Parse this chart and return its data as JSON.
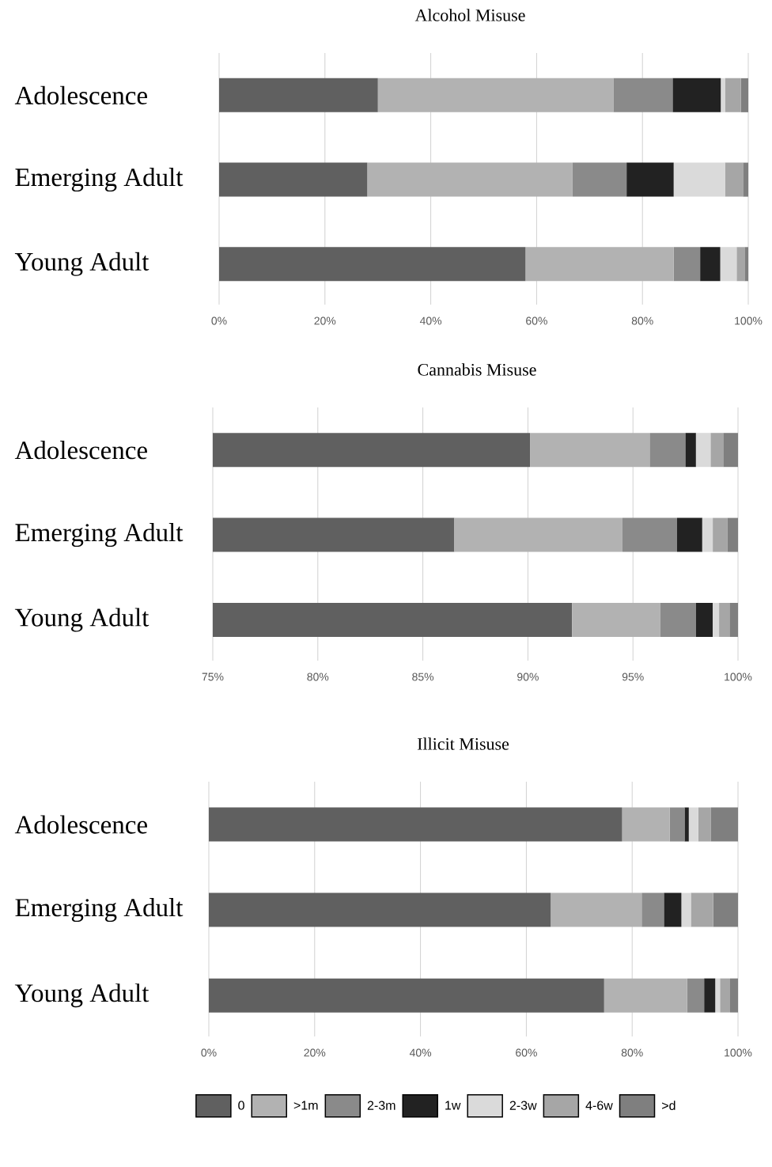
{
  "chart_data": [
    {
      "type": "bar",
      "orientation": "horizontal",
      "stacked": true,
      "title": "Alcohol Misuse",
      "categories": [
        "Adolescence",
        "Emerging Adult",
        "Young Adult"
      ],
      "series": [
        {
          "color": "#606060",
          "values": [
            30,
            28,
            57.9
          ]
        },
        {
          "color": "#b2b2b2",
          "values": [
            44.5,
            38.8,
            28.0
          ]
        },
        {
          "color": "#8a8a8a",
          "values": [
            11.2,
            10.2,
            5.0
          ]
        },
        {
          "color": "#222222",
          "values": [
            9.1,
            8.9,
            3.8
          ]
        },
        {
          "color": "#dadada",
          "values": [
            0.8,
            9.7,
            3.1
          ]
        },
        {
          "color": "#a6a6a6",
          "values": [
            3.0,
            3.4,
            1.5
          ]
        },
        {
          "color": "#7f7f7f",
          "values": [
            1.4,
            1.0,
            0.7
          ]
        }
      ],
      "xlim": [
        0,
        100
      ],
      "xticks": [
        {
          "value": 0,
          "label": "0%"
        },
        {
          "value": 20,
          "label": "20%"
        },
        {
          "value": 40,
          "label": "40%"
        },
        {
          "value": 60,
          "label": "60%"
        },
        {
          "value": 80,
          "label": "80%"
        },
        {
          "value": 100,
          "label": "100%"
        }
      ],
      "grid": "x"
    },
    {
      "type": "bar",
      "orientation": "horizontal",
      "stacked": true,
      "title": "Cannabis Misuse",
      "categories": [
        "Adolescence",
        "Emerging Adult",
        "Young Adult"
      ],
      "series": [
        {
          "color": "#606060",
          "values": [
            90.1,
            86.5,
            92.1
          ]
        },
        {
          "color": "#b2b2b2",
          "base": [
            90.1,
            86.5,
            92.1
          ],
          "values": [
            5.7,
            8.0,
            4.2
          ]
        },
        {
          "color": "#8a8a8a",
          "base": [
            95.8,
            94.5,
            96.3
          ],
          "values": [
            1.7,
            2.6,
            1.7
          ]
        },
        {
          "color": "#222222",
          "base": [
            97.5,
            97.1,
            98.0
          ],
          "values": [
            0.5,
            1.2,
            0.8
          ]
        },
        {
          "color": "#dadada",
          "base": [
            98.0,
            98.3,
            98.8
          ],
          "values": [
            0.7,
            0.5,
            0.3
          ]
        },
        {
          "color": "#a6a6a6",
          "base": [
            98.7,
            98.8,
            99.1
          ],
          "values": [
            0.6,
            0.7,
            0.5
          ]
        },
        {
          "color": "#7f7f7f",
          "base": [
            99.3,
            99.5,
            99.6
          ],
          "values": [
            0.7,
            0.5,
            0.4
          ]
        }
      ],
      "xlim": [
        75,
        100
      ],
      "xticks": [
        {
          "value": 75,
          "label": "75%"
        },
        {
          "value": 80,
          "label": "80%"
        },
        {
          "value": 85,
          "label": "85%"
        },
        {
          "value": 90,
          "label": "90%"
        },
        {
          "value": 95,
          "label": "95%"
        },
        {
          "value": 100,
          "label": "100%"
        }
      ],
      "grid": "x"
    },
    {
      "type": "bar",
      "orientation": "horizontal",
      "stacked": true,
      "title": "Illicit Misuse",
      "categories": [
        "Adolescence",
        "Emerging Adult",
        "Young Adult"
      ],
      "series": [
        {
          "name": "0",
          "color": "#606060",
          "values": [
            78.1,
            64.6,
            74.7
          ]
        },
        {
          "name": ">1m",
          "color": "#b2b2b2",
          "values": [
            9.0,
            17.2,
            15.7
          ]
        },
        {
          "name": "2-3m",
          "color": "#8a8a8a",
          "values": [
            2.8,
            4.2,
            3.2
          ]
        },
        {
          "name": "1w",
          "color": "#222222",
          "values": [
            0.8,
            3.3,
            2.1
          ]
        },
        {
          "name": "2-3w",
          "color": "#dadada",
          "values": [
            1.8,
            1.8,
            0.9
          ]
        },
        {
          "name": "4-6w",
          "color": "#a6a6a6",
          "values": [
            2.4,
            4.2,
            1.9
          ]
        },
        {
          "name": ">d",
          "color": "#7f7f7f",
          "values": [
            5.1,
            4.7,
            1.5
          ]
        }
      ],
      "xlim": [
        0,
        100
      ],
      "xticks": [
        {
          "value": 0,
          "label": "0%"
        },
        {
          "value": 20,
          "label": "20%"
        },
        {
          "value": 40,
          "label": "40%"
        },
        {
          "value": 60,
          "label": "60%"
        },
        {
          "value": 80,
          "label": "80%"
        },
        {
          "value": 100,
          "label": "100%"
        }
      ],
      "grid": "x",
      "legend": "bottom"
    }
  ]
}
